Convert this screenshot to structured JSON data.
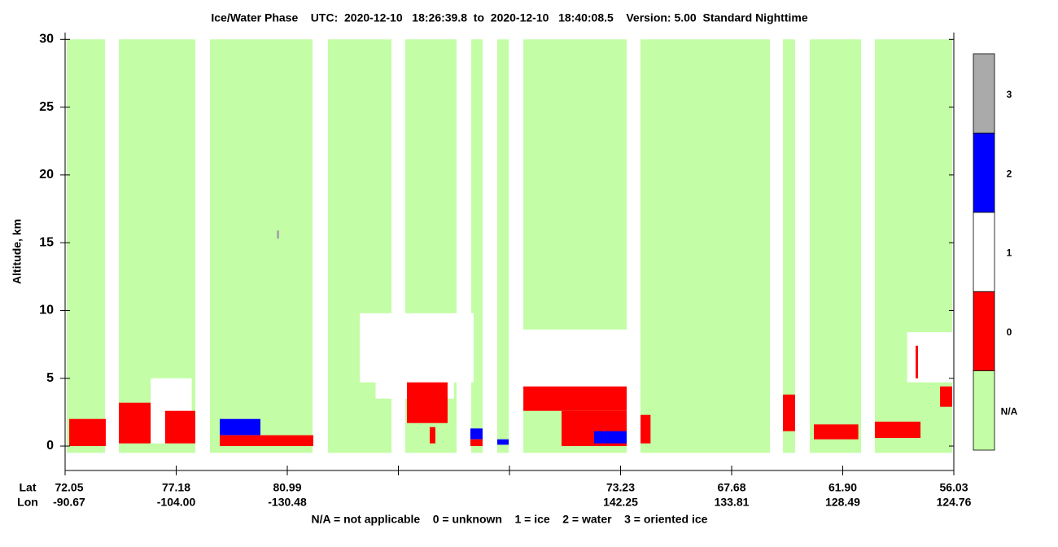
{
  "chart_data": {
    "type": "phase-profile",
    "title": "Ice/Water Phase    UTC:  2020-12-10   18:26:39.8  to  2020-12-10   18:40:08.5    Version: 5.00  Standard Nighttime",
    "y_label": "Altitude, km",
    "ylim": [
      -1.8,
      30.5
    ],
    "yticks": [
      0,
      5,
      10,
      15,
      20,
      25,
      30
    ],
    "xlim": [
      0,
      8
    ],
    "xticks": [
      0,
      1,
      2,
      3,
      4,
      5,
      6,
      7,
      8
    ],
    "lat_label": "Lat",
    "lon_label": "Lon",
    "lat": [
      "72.05",
      "77.18",
      "80.99",
      null,
      null,
      "73.23",
      "67.68",
      "61.90",
      "56.03"
    ],
    "lon": [
      "-90.67",
      "-104.00",
      "-130.48",
      null,
      null,
      "142.25",
      "133.81",
      "128.49",
      "124.76"
    ],
    "legend_text": "N/A = not applicable    0 = unknown    1 = ice    2 = water    3 = oriented ice",
    "colorbar": {
      "labels": [
        "N/A",
        "0",
        "1",
        "2",
        "3"
      ],
      "colors": [
        "#c3fda5",
        "#ff0000",
        "#ffffff",
        "#0000ff",
        "#aaaaaa"
      ]
    },
    "na_alt": [
      -0.5,
      30
    ],
    "profiles": [
      [
        0.015,
        0.359
      ],
      [
        0.484,
        1.172
      ],
      [
        1.304,
        2.227
      ],
      [
        2.366,
        2.938
      ],
      [
        3.062,
        3.524
      ],
      [
        3.656,
        3.758
      ],
      [
        3.89,
        3.993
      ],
      [
        4.125,
        5.055
      ],
      [
        5.179,
        6.344
      ],
      [
        6.462,
        6.571
      ],
      [
        6.703,
        7.165
      ],
      [
        7.289,
        7.985
      ]
    ],
    "blocks": [
      {
        "phase": 1,
        "x": [
          2.652,
          3.678
        ],
        "alt": [
          4.7,
          9.8
        ]
      },
      {
        "phase": 1,
        "x": [
          2.795,
          3.5
        ],
        "alt": [
          3.5,
          7.1
        ]
      },
      {
        "phase": 1,
        "x": [
          4.125,
          5.055
        ],
        "alt": [
          4.1,
          8.6
        ]
      },
      {
        "phase": 1,
        "x": [
          7.58,
          7.985
        ],
        "alt": [
          4.7,
          8.4
        ]
      },
      {
        "phase": 1,
        "x": [
          0.77,
          1.14
        ],
        "alt": [
          0.2,
          5.0
        ]
      },
      {
        "phase": 0,
        "x": [
          0.484,
          0.77
        ],
        "alt": [
          0.2,
          3.2
        ]
      },
      {
        "phase": 0,
        "x": [
          0.9,
          1.172
        ],
        "alt": [
          0.2,
          2.6
        ]
      },
      {
        "phase": 0,
        "x": [
          3.077,
          3.443
        ],
        "alt": [
          1.7,
          4.7
        ]
      },
      {
        "phase": 0,
        "x": [
          4.125,
          5.055
        ],
        "alt": [
          2.6,
          4.4
        ]
      },
      {
        "phase": 0,
        "x": [
          4.469,
          5.055
        ],
        "alt": [
          0.0,
          2.6
        ]
      },
      {
        "phase": 2,
        "x": [
          1.392,
          1.758
        ],
        "alt": [
          0.8,
          2.0
        ]
      },
      {
        "phase": 0,
        "x": [
          1.392,
          2.234
        ],
        "alt": [
          0.0,
          0.8
        ]
      },
      {
        "phase": 2,
        "x": [
          3.648,
          3.758
        ],
        "alt": [
          0.5,
          1.3
        ]
      },
      {
        "phase": 0,
        "x": [
          3.648,
          3.758
        ],
        "alt": [
          0.0,
          0.5
        ]
      },
      {
        "phase": 2,
        "x": [
          3.89,
          3.993
        ],
        "alt": [
          0.1,
          0.5
        ]
      },
      {
        "phase": 2,
        "x": [
          4.762,
          5.055
        ],
        "alt": [
          0.2,
          1.1
        ]
      },
      {
        "phase": 0,
        "x": [
          0.037,
          0.366
        ],
        "alt": [
          0.0,
          2.0
        ]
      },
      {
        "phase": 0,
        "x": [
          5.18,
          5.27
        ],
        "alt": [
          0.2,
          2.3
        ]
      },
      {
        "phase": 0,
        "x": [
          6.462,
          6.571
        ],
        "alt": [
          1.1,
          3.8
        ]
      },
      {
        "phase": 0,
        "x": [
          6.74,
          7.14
        ],
        "alt": [
          0.5,
          1.6
        ]
      },
      {
        "phase": 0,
        "x": [
          7.289,
          7.7
        ],
        "alt": [
          0.6,
          1.8
        ]
      },
      {
        "phase": 0,
        "x": [
          7.656,
          7.678
        ],
        "alt": [
          5.0,
          7.4
        ]
      },
      {
        "phase": 0,
        "x": [
          7.876,
          7.985
        ],
        "alt": [
          2.9,
          4.4
        ]
      },
      {
        "phase": 0,
        "x": [
          3.282,
          3.333
        ],
        "alt": [
          0.2,
          1.4
        ]
      },
      {
        "phase": 3,
        "x": [
          1.905,
          1.927
        ],
        "alt": [
          15.3,
          15.9
        ]
      }
    ]
  }
}
